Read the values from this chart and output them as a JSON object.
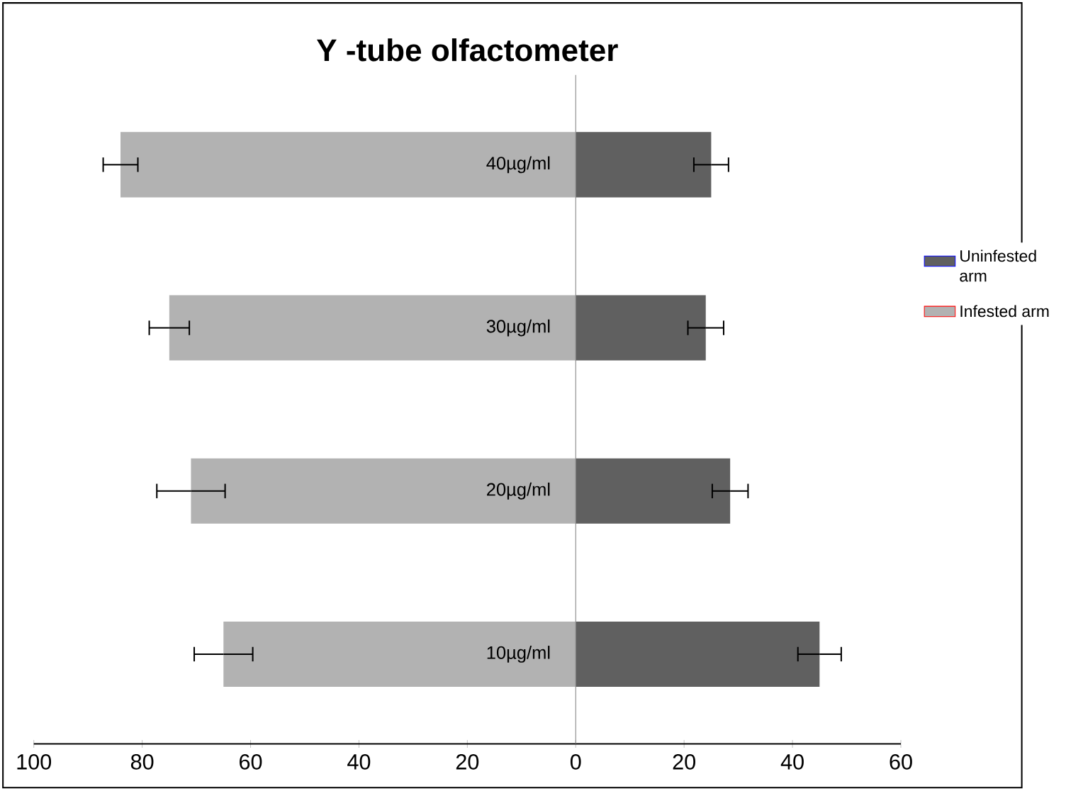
{
  "chart_data": {
    "type": "bar",
    "orientation": "horizontal",
    "stacked": true,
    "title": "Y -tube olfactometer",
    "categories": [
      "40µg/ml",
      "30µg/ml",
      "20µg/ml",
      "10µg/ml"
    ],
    "series": [
      {
        "name": "Uninfested arm",
        "color": "#606060",
        "values": [
          25,
          24,
          28.5,
          45
        ],
        "errors": [
          3.2,
          3.3,
          3.3,
          4
        ]
      },
      {
        "name": "Infested arm",
        "color": "#b2b2b2",
        "values": [
          -84,
          -75,
          -71,
          -65
        ],
        "errors": [
          3.2,
          3.7,
          6.3,
          5.4
        ]
      }
    ],
    "xlim": [
      -100,
      60
    ],
    "xticks": [
      {
        "value": -100,
        "label": "100"
      },
      {
        "value": -80,
        "label": "80"
      },
      {
        "value": -60,
        "label": "60"
      },
      {
        "value": -40,
        "label": "40"
      },
      {
        "value": -20,
        "label": "20"
      },
      0,
      20,
      40,
      60
    ],
    "legend": "right",
    "grid": false
  }
}
